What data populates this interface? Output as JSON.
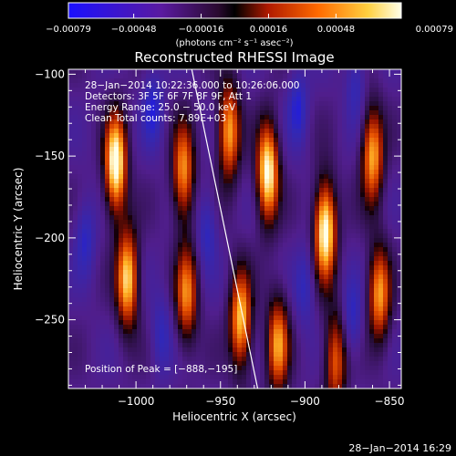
{
  "chart_data": {
    "type": "heatmap",
    "title": "Reconstructed RHESSI Image",
    "xlabel": "Heliocentric X (arcsec)",
    "ylabel": "Heliocentric Y (arcsec)",
    "xlim": [
      -1040,
      -843
    ],
    "ylim": [
      -292,
      -97
    ],
    "xticks": [
      -1000,
      -950,
      -900,
      -850
    ],
    "yticks": [
      -100,
      -150,
      -200,
      -250
    ],
    "xtick_labels": [
      "−1000",
      "−950",
      "−900",
      "−850"
    ],
    "ytick_labels": [
      "−100",
      "−150",
      "−200",
      "−250"
    ],
    "colorbar": {
      "label": "(photons cm⁻² s⁻¹ asec⁻²)",
      "ticks": [
        -0.00079,
        -0.00048,
        -0.00016,
        0.00016,
        0.00048,
        0.00079
      ],
      "tick_labels": [
        "−0.00079",
        "−0.00048",
        "−0.00016",
        "0.00016",
        "0.00048",
        "0.00079"
      ],
      "range": [
        -0.00079,
        0.00079
      ]
    },
    "info_lines": [
      "28−Jan−2014 10:22:36.000 to 10:26:06.000",
      "Detectors: 3F 5F 6F 7F 8F 9F, Att 1",
      "Energy Range: 25.0 − 50.0 keV",
      "Clean    Total counts: 7.89E+03"
    ],
    "peak_label": "Position of Peak = [−888,−195]",
    "peak": [
      -888,
      -195
    ],
    "limb_line": [
      [
        -967,
        -97
      ],
      [
        -928,
        -292
      ]
    ],
    "bright_bands": [
      {
        "x": -1012,
        "y": -155,
        "amp": 1.0
      },
      {
        "x": -1005,
        "y": -225,
        "amp": 0.85
      },
      {
        "x": -972,
        "y": -160,
        "amp": 0.7
      },
      {
        "x": -970,
        "y": -235,
        "amp": 0.65
      },
      {
        "x": -945,
        "y": -135,
        "amp": 0.75
      },
      {
        "x": -938,
        "y": -250,
        "amp": 0.8
      },
      {
        "x": -922,
        "y": -160,
        "amp": 0.95
      },
      {
        "x": -916,
        "y": -265,
        "amp": 0.7
      },
      {
        "x": -888,
        "y": -195,
        "amp": 1.0
      },
      {
        "x": -882,
        "y": -275,
        "amp": 0.6
      },
      {
        "x": -860,
        "y": -150,
        "amp": 0.75
      },
      {
        "x": -856,
        "y": -235,
        "amp": 0.7
      }
    ],
    "dark_bands": [
      {
        "x": -1030,
        "y": -200,
        "amp": 0.55
      },
      {
        "x": -990,
        "y": -120,
        "amp": 0.6
      },
      {
        "x": -985,
        "y": -260,
        "amp": 0.5
      },
      {
        "x": -958,
        "y": -195,
        "amp": 0.55
      },
      {
        "x": -904,
        "y": -120,
        "amp": 0.6
      },
      {
        "x": -900,
        "y": -230,
        "amp": 0.5
      },
      {
        "x": -870,
        "y": -105,
        "amp": 0.5
      },
      {
        "x": -872,
        "y": -250,
        "amp": 0.55
      }
    ]
  },
  "footer_timestamp": "28−Jan−2014 16:29"
}
